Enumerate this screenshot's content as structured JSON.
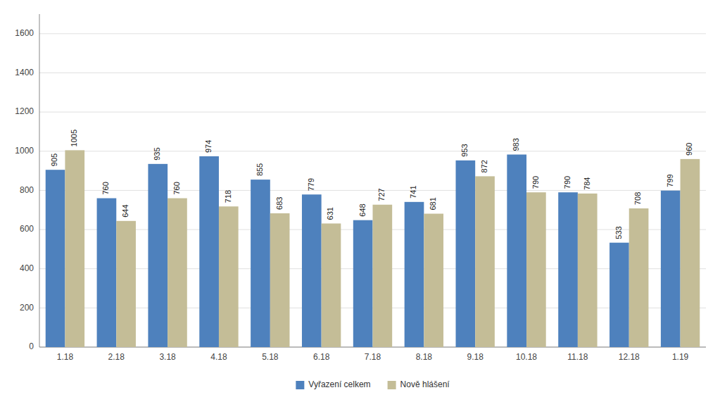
{
  "chart_data": {
    "type": "bar",
    "categories": [
      "1.18",
      "2.18",
      "3.18",
      "4.18",
      "5.18",
      "6.18",
      "7.18",
      "8.18",
      "9.18",
      "10.18",
      "11.18",
      "12.18",
      "1.19"
    ],
    "series": [
      {
        "name": "Vyřazení celkem",
        "color": "#4E81BD",
        "values": [
          905,
          760,
          935,
          974,
          855,
          779,
          648,
          741,
          953,
          983,
          790,
          533,
          799
        ]
      },
      {
        "name": "Nově hlášení",
        "color": "#C4BD97",
        "values": [
          1005,
          644,
          760,
          718,
          683,
          631,
          727,
          681,
          872,
          790,
          784,
          708,
          960
        ]
      }
    ],
    "ylim": [
      0,
      1700
    ],
    "yticks": [
      0,
      200,
      400,
      600,
      800,
      1000,
      1200,
      1400,
      1600
    ],
    "grid": true,
    "legend": "bottom",
    "data_labels": true
  }
}
